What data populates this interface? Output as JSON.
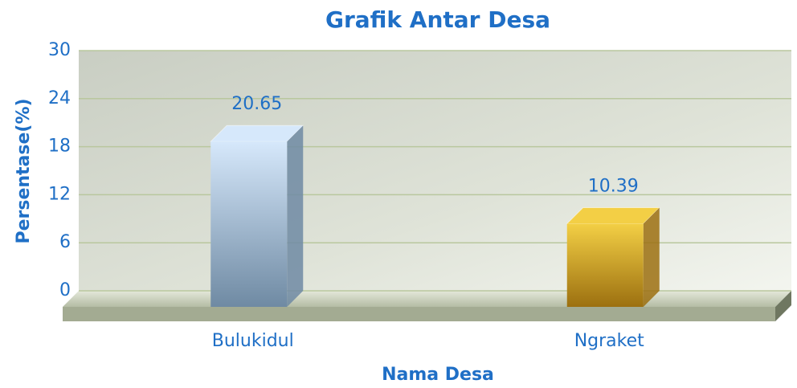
{
  "chart_data": {
    "type": "bar3d",
    "title": "Grafik Antar Desa",
    "x_label": "Nama Desa",
    "y_label": "Persentase(%)",
    "categories": [
      "Bulukidul",
      "Ngraket"
    ],
    "values": [
      20.65,
      10.39
    ],
    "colors": [
      [
        "#d6e8fb",
        "#6f8aa3"
      ],
      [
        "#f3cf45",
        "#9c7010"
      ]
    ],
    "ylim": [
      0,
      30
    ],
    "yticks": [
      0,
      6,
      12,
      18,
      24,
      30
    ],
    "grid": true
  }
}
